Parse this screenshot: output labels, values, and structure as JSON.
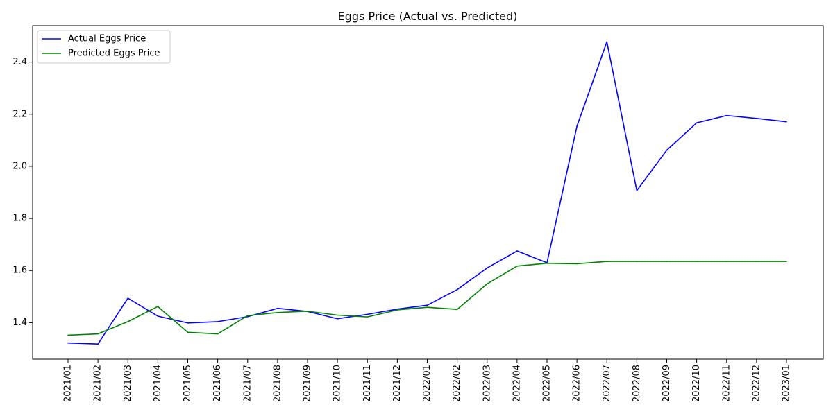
{
  "chart_data": {
    "type": "line",
    "title": "Eggs Price (Actual vs. Predicted)",
    "xlabel": "",
    "ylabel": "",
    "categories": [
      "2021/01",
      "2021/02",
      "2021/03",
      "2021/04",
      "2021/05",
      "2021/06",
      "2021/07",
      "2021/08",
      "2021/09",
      "2021/10",
      "2021/11",
      "2021/12",
      "2022/01",
      "2022/02",
      "2022/03",
      "2022/04",
      "2022/05",
      "2022/06",
      "2022/07",
      "2022/08",
      "2022/09",
      "2022/10",
      "2022/11",
      "2022/12",
      "2023/01"
    ],
    "ylim": [
      1.26,
      2.54
    ],
    "yticks": [
      1.4,
      1.6,
      1.8,
      2.0,
      2.2,
      2.4
    ],
    "ytick_labels": [
      "1.4",
      "1.6",
      "1.8",
      "2.0",
      "2.2",
      "2.4"
    ],
    "grid": false,
    "legend_position": "top-left",
    "series": [
      {
        "name": "Actual Eggs Price",
        "color": "#0000ff",
        "values": [
          1.322,
          1.318,
          1.494,
          1.425,
          1.399,
          1.404,
          1.423,
          1.455,
          1.443,
          1.415,
          1.432,
          1.452,
          1.467,
          1.527,
          1.61,
          1.675,
          1.63,
          2.154,
          2.478,
          1.907,
          2.062,
          2.167,
          2.195,
          2.184,
          2.171
        ]
      },
      {
        "name": "Predicted Eggs Price",
        "color": "#008000",
        "values": [
          1.352,
          1.357,
          1.404,
          1.462,
          1.363,
          1.357,
          1.427,
          1.439,
          1.444,
          1.429,
          1.422,
          1.449,
          1.459,
          1.451,
          1.549,
          1.617,
          1.628,
          1.626,
          1.635,
          1.635,
          1.635,
          1.635,
          1.635,
          1.635,
          1.635
        ]
      }
    ]
  }
}
